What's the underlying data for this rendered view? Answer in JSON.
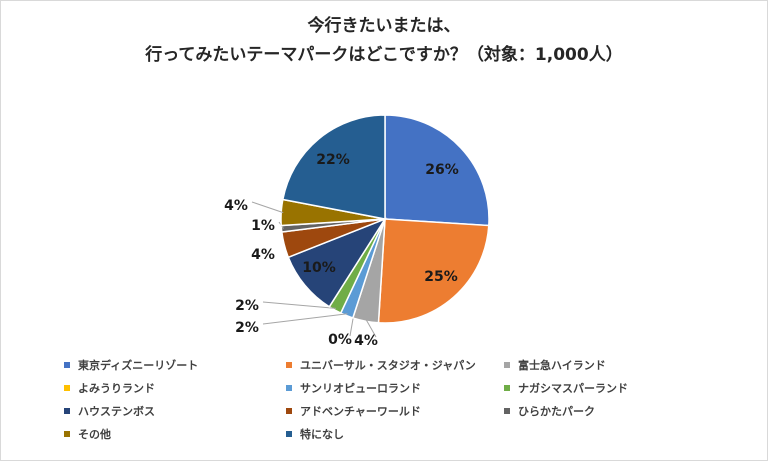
{
  "title_line1": "今行きたいまたは、",
  "title_line2": "行ってみたいテーマパークはどこですか？（対象：1,000人）",
  "chart_data": {
    "type": "pie",
    "title": "今行きたいまたは、行ってみたいテーマパークはどこですか？（対象：1,000人）",
    "categories": [
      "東京ディズニーリゾート",
      "ユニバーサル・スタジオ・ジャパン",
      "富士急ハイランド",
      "よみうりランド",
      "サンリオピューロランド",
      "ナガシマスパーランド",
      "ハウステンボス",
      "アドベンチャーワールド",
      "ひらかたパーク",
      "その他",
      "特になし"
    ],
    "values": [
      26,
      25,
      4,
      0,
      2,
      2,
      10,
      4,
      1,
      4,
      22
    ],
    "labels": [
      "26%",
      "25%",
      "4%",
      "0%",
      "2%",
      "2%",
      "10%",
      "4%",
      "1%",
      "4%",
      "22%"
    ],
    "colors": [
      "#4472C4",
      "#ED7D31",
      "#A5A5A5",
      "#FFC000",
      "#5B9BD5",
      "#70AD47",
      "#264478",
      "#9E480E",
      "#636363",
      "#997300",
      "#255E91"
    ],
    "legend_position": "bottom"
  }
}
